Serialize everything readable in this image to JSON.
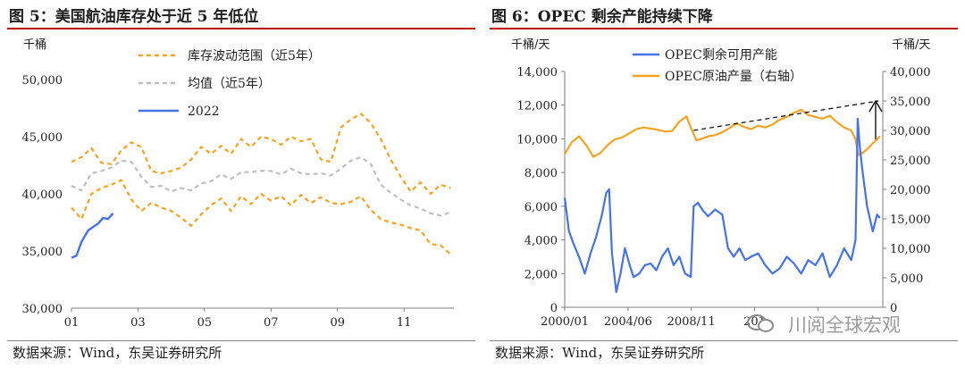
{
  "left": {
    "title": "图 5：美国航油库存处于近 5 年低位",
    "source": "数据来源：Wind，东吴证券研究所"
  },
  "right": {
    "title": "图 6：OPEC 剩余产能持续下降",
    "source": "数据来源：Wind，东吴证券研究所"
  },
  "watermark": {
    "text": "川阅全球宏观",
    "icon": "wechat-icon"
  },
  "chart_data": [
    {
      "type": "line",
      "unit_label": "千桶",
      "ylim": [
        30000,
        50000
      ],
      "yticks": [
        30000,
        35000,
        40000,
        45000,
        50000
      ],
      "xlim": [
        1,
        12.5
      ],
      "xticks": [
        1,
        3,
        5,
        7,
        9,
        11
      ],
      "xtick_labels": [
        "01",
        "03",
        "05",
        "07",
        "09",
        "11"
      ],
      "legend_position": "top-center",
      "colors": {
        "band": "#f5a321",
        "mean": "#bfbfbf",
        "y2022": "#4472e8"
      },
      "series": [
        {
          "name": "库存波动范围（近5年）",
          "role": "upper",
          "style": "dashed",
          "x": [
            1.0,
            1.3,
            1.6,
            1.9,
            2.2,
            2.5,
            2.8,
            3.1,
            3.4,
            3.7,
            4.0,
            4.3,
            4.6,
            4.9,
            5.2,
            5.5,
            5.8,
            6.1,
            6.4,
            6.7,
            7.0,
            7.3,
            7.6,
            7.9,
            8.2,
            8.5,
            8.8,
            9.1,
            9.4,
            9.7,
            10.0,
            10.3,
            10.6,
            10.9,
            11.2,
            11.5,
            11.8,
            12.1,
            12.4
          ],
          "values": [
            42800,
            43200,
            44000,
            42700,
            42600,
            43800,
            44500,
            44100,
            42000,
            41800,
            42000,
            42300,
            43000,
            44100,
            43500,
            44200,
            43500,
            44800,
            44100,
            45000,
            44800,
            44300,
            45000,
            44600,
            44800,
            43000,
            42800,
            45800,
            46500,
            47000,
            46200,
            44800,
            43000,
            41500,
            40200,
            41000,
            40000,
            40800,
            40500
          ]
        },
        {
          "name": "库存波动范围（近5年）",
          "role": "lower",
          "style": "dashed",
          "x": [
            1.0,
            1.3,
            1.6,
            1.9,
            2.2,
            2.5,
            2.8,
            3.1,
            3.4,
            3.7,
            4.0,
            4.3,
            4.6,
            4.9,
            5.2,
            5.5,
            5.8,
            6.1,
            6.4,
            6.7,
            7.0,
            7.3,
            7.6,
            7.9,
            8.2,
            8.5,
            8.8,
            9.1,
            9.4,
            9.7,
            10.0,
            10.3,
            10.6,
            10.9,
            11.2,
            11.5,
            11.8,
            12.1,
            12.4
          ],
          "values": [
            38800,
            37800,
            40000,
            40500,
            40800,
            41200,
            39500,
            38500,
            39200,
            38800,
            38500,
            37900,
            37200,
            38200,
            39000,
            39600,
            38500,
            39800,
            39100,
            40000,
            39400,
            39800,
            39000,
            39900,
            39200,
            39700,
            39200,
            39100,
            39300,
            39800,
            38600,
            37800,
            37500,
            37300,
            37000,
            36800,
            35600,
            35500,
            34700
          ]
        },
        {
          "name": "均值（近5年）",
          "role": "mean",
          "style": "dashed",
          "x": [
            1.0,
            1.3,
            1.6,
            1.9,
            2.2,
            2.5,
            2.8,
            3.1,
            3.4,
            3.7,
            4.0,
            4.3,
            4.6,
            4.9,
            5.2,
            5.5,
            5.8,
            6.1,
            6.4,
            6.7,
            7.0,
            7.3,
            7.6,
            7.9,
            8.2,
            8.5,
            8.8,
            9.1,
            9.4,
            9.7,
            10.0,
            10.3,
            10.6,
            10.9,
            11.2,
            11.5,
            11.8,
            12.1,
            12.4
          ],
          "values": [
            40700,
            40300,
            41800,
            42000,
            42300,
            42900,
            42800,
            41500,
            40600,
            40700,
            40200,
            40500,
            40300,
            40900,
            41100,
            41700,
            41300,
            41900,
            41900,
            42000,
            42000,
            41700,
            42200,
            41800,
            41700,
            41800,
            41600,
            42200,
            42900,
            43200,
            42600,
            40800,
            40100,
            39500,
            39000,
            38700,
            38300,
            38100,
            38400
          ]
        },
        {
          "name": "2022",
          "role": "actual",
          "style": "solid",
          "x": [
            1.0,
            1.15,
            1.3,
            1.5,
            1.65,
            1.8,
            1.95,
            2.1,
            2.25
          ],
          "values": [
            34400,
            34600,
            35800,
            36800,
            37100,
            37400,
            37900,
            37800,
            38300
          ]
        }
      ]
    },
    {
      "type": "line",
      "y_left_label": "千桶/天",
      "y_right_label": "千桶/天",
      "ylim_left": [
        0,
        14000
      ],
      "yticks_left": [
        0,
        2000,
        4000,
        6000,
        8000,
        10000,
        12000,
        14000
      ],
      "ylim_right": [
        0,
        40000
      ],
      "yticks_right": [
        0,
        5000,
        10000,
        15000,
        20000,
        25000,
        30000,
        35000,
        40000
      ],
      "xlim": [
        2000.0,
        2022.2
      ],
      "xticks": [
        2000.0,
        2004.42,
        2008.83,
        2013.25,
        2017.67
      ],
      "xtick_labels": [
        "2000/01",
        "2004/06",
        "2008/11",
        "201",
        ""
      ],
      "legend_position": "top-center",
      "colors": {
        "spare": "#4472e8",
        "production": "#f5a321"
      },
      "series": [
        {
          "name": "OPEC剩余可用产能",
          "axis": "left",
          "x": [
            2000.0,
            2000.3,
            2000.6,
            2001.0,
            2001.4,
            2001.8,
            2002.2,
            2002.6,
            2002.9,
            2003.1,
            2003.3,
            2003.6,
            2003.9,
            2004.2,
            2004.5,
            2004.8,
            2005.2,
            2005.6,
            2006.0,
            2006.4,
            2006.8,
            2007.2,
            2007.6,
            2008.0,
            2008.4,
            2008.8,
            2009.0,
            2009.3,
            2009.6,
            2010.0,
            2010.5,
            2011.0,
            2011.4,
            2011.8,
            2012.2,
            2012.6,
            2013.0,
            2013.5,
            2014.0,
            2014.5,
            2015.0,
            2015.5,
            2016.0,
            2016.5,
            2017.0,
            2017.5,
            2018.0,
            2018.5,
            2019.0,
            2019.5,
            2020.0,
            2020.3,
            2020.45,
            2020.6,
            2020.8,
            2021.1,
            2021.5,
            2021.8,
            2022.0
          ],
          "values": [
            6500,
            4500,
            3800,
            3000,
            2000,
            3200,
            4200,
            5500,
            6800,
            7000,
            3200,
            900,
            2000,
            3500,
            2600,
            1800,
            2000,
            2500,
            2600,
            2200,
            3000,
            3500,
            2500,
            3000,
            2000,
            1800,
            6000,
            6200,
            5800,
            5400,
            5800,
            5500,
            3500,
            3000,
            3500,
            2800,
            3000,
            3200,
            2500,
            2000,
            2300,
            3000,
            2600,
            2000,
            2800,
            2500,
            3200,
            1800,
            2500,
            3500,
            2800,
            4000,
            11200,
            9500,
            8000,
            6000,
            4500,
            5500,
            5300
          ]
        },
        {
          "name": "OPEC原油产量（右轴）",
          "axis": "right",
          "x": [
            2000.0,
            2000.5,
            2001.0,
            2001.5,
            2002.0,
            2002.5,
            2003.0,
            2003.5,
            2004.0,
            2004.5,
            2005.0,
            2005.5,
            2006.0,
            2006.5,
            2007.0,
            2007.5,
            2008.0,
            2008.5,
            2008.8,
            2009.2,
            2009.6,
            2010.0,
            2010.5,
            2011.0,
            2011.5,
            2012.0,
            2012.5,
            2013.0,
            2013.5,
            2014.0,
            2014.5,
            2015.0,
            2015.5,
            2016.0,
            2016.5,
            2017.0,
            2017.5,
            2018.0,
            2018.5,
            2019.0,
            2019.5,
            2020.0,
            2020.3,
            2020.5,
            2020.8,
            2021.1,
            2021.5,
            2021.8,
            2022.0
          ],
          "values": [
            26000,
            28000,
            29000,
            27500,
            25500,
            26200,
            27500,
            28500,
            28800,
            29500,
            30200,
            30500,
            30300,
            30100,
            29800,
            29900,
            31500,
            32400,
            30500,
            28300,
            28600,
            29000,
            29200,
            29700,
            30400,
            31200,
            30600,
            30200,
            30800,
            30500,
            31000,
            31800,
            32300,
            33000,
            33500,
            32600,
            32300,
            32000,
            32500,
            31400,
            30500,
            30000,
            28500,
            25800,
            26200,
            26800,
            27800,
            28500,
            29000
          ]
        }
      ],
      "annotations": [
        {
          "type": "dashed-trend",
          "x": [
            2009.0,
            2021.9
          ],
          "values_right": [
            30000,
            35000
          ]
        },
        {
          "type": "arrow-up",
          "x": 2021.7,
          "values_right": [
            28500,
            35000
          ]
        }
      ]
    }
  ]
}
